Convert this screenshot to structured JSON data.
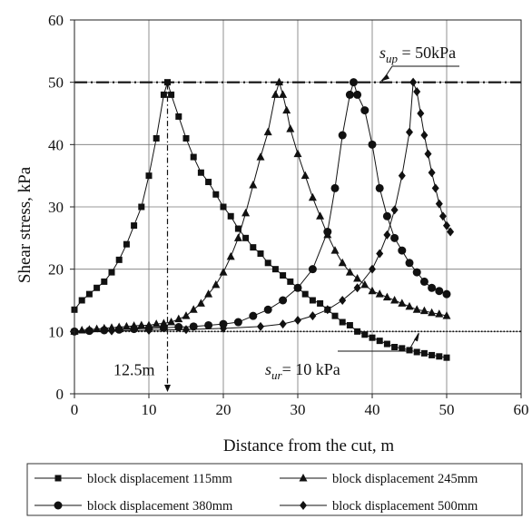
{
  "chart_data": {
    "type": "line",
    "xlabel": "Distance from the cut, m",
    "ylabel": "Shear stress, kPa",
    "xlim": [
      0,
      60
    ],
    "ylim": [
      0,
      60
    ],
    "xticks": [
      0,
      10,
      20,
      30,
      40,
      50,
      60
    ],
    "yticks": [
      0,
      10,
      20,
      30,
      40,
      50,
      60
    ],
    "grid": true,
    "legend_position": "bottom",
    "reference_lines": [
      {
        "y": 50,
        "style": "dash-dot",
        "label": {
          "main": "s",
          "sub": "up",
          "rest": " = 50kPa"
        }
      },
      {
        "y": 10,
        "style": "dotted",
        "label": {
          "main": "s",
          "sub": "ur",
          "rest": "= 10 kPa"
        }
      }
    ],
    "vertical_marker": {
      "x": 12.5,
      "label": "12.5m"
    },
    "series": [
      {
        "name": "block displacement 115mm",
        "marker": "square",
        "x": [
          0,
          1,
          2,
          3,
          4,
          5,
          6,
          7,
          8,
          9,
          10,
          11,
          12,
          12.5,
          13,
          14,
          15,
          16,
          17,
          18,
          19,
          20,
          21,
          22,
          23,
          24,
          25,
          26,
          27,
          28,
          29,
          30,
          31,
          32,
          33,
          34,
          35,
          36,
          37,
          38,
          39,
          40,
          41,
          42,
          43,
          44,
          45,
          46,
          47,
          48,
          49,
          50
        ],
        "y": [
          13.5,
          15,
          16,
          17,
          18,
          19.5,
          21.5,
          24,
          27,
          30,
          35,
          41,
          48,
          50,
          48,
          44.5,
          41,
          38,
          35.5,
          34,
          32,
          30,
          28.5,
          26.5,
          25,
          23.5,
          22.5,
          21,
          20,
          19,
          18,
          17,
          16,
          15,
          14.5,
          13.5,
          12.5,
          11.5,
          11,
          10,
          9.5,
          9,
          8.5,
          8,
          7.5,
          7.3,
          7,
          6.7,
          6.5,
          6.2,
          6,
          5.8
        ]
      },
      {
        "name": "block displacement 245mm",
        "marker": "triangle",
        "x": [
          0,
          1,
          2,
          3,
          4,
          5,
          6,
          7,
          8,
          9,
          10,
          11,
          12,
          13,
          14,
          15,
          16,
          17,
          18,
          19,
          20,
          21,
          22,
          23,
          24,
          25,
          26,
          27,
          27.5,
          28,
          28.5,
          29,
          30,
          31,
          32,
          33,
          34,
          35,
          36,
          37,
          38,
          39,
          40,
          41,
          42,
          43,
          44,
          45,
          46,
          47,
          48,
          49,
          50
        ],
        "y": [
          10,
          10.2,
          10.3,
          10.4,
          10.5,
          10.6,
          10.7,
          10.8,
          10.9,
          11,
          11,
          11.2,
          11.3,
          11.5,
          12,
          12.5,
          13.5,
          14.5,
          16,
          17.5,
          19.5,
          22,
          25,
          29,
          33.5,
          38,
          42,
          48,
          50,
          48,
          45.5,
          42.5,
          38.5,
          35,
          31.5,
          28.5,
          25.5,
          23,
          21,
          19.5,
          18.5,
          17.5,
          16.5,
          16,
          15.5,
          15,
          14.5,
          14,
          13.5,
          13.3,
          13,
          12.8,
          12.5
        ]
      },
      {
        "name": "block displacement 380mm",
        "marker": "circle",
        "x": [
          0,
          2,
          4,
          6,
          8,
          10,
          12,
          14,
          16,
          18,
          20,
          22,
          24,
          26,
          28,
          30,
          32,
          34,
          35,
          36,
          37,
          37.5,
          38,
          39,
          40,
          41,
          42,
          43,
          44,
          45,
          46,
          47,
          48,
          49,
          50
        ],
        "y": [
          10,
          10.1,
          10.2,
          10.3,
          10.4,
          10.5,
          10.6,
          10.7,
          10.8,
          11,
          11.2,
          11.5,
          12.5,
          13.5,
          15,
          17,
          20,
          26,
          33,
          41.5,
          48,
          50,
          48,
          45.5,
          40,
          33,
          28.5,
          25,
          23,
          21,
          19.5,
          18,
          17,
          16.5,
          16
        ]
      },
      {
        "name": "block displacement 500mm",
        "marker": "diamond",
        "x": [
          0,
          5,
          10,
          15,
          20,
          25,
          28,
          30,
          32,
          34,
          36,
          38,
          40,
          41,
          42,
          43,
          44,
          45,
          45.5,
          46,
          46.5,
          47,
          47.5,
          48,
          48.5,
          49,
          49.5,
          50,
          50.5
        ],
        "y": [
          10,
          10.1,
          10.2,
          10.3,
          10.5,
          10.8,
          11.2,
          11.8,
          12.5,
          13.5,
          15,
          17,
          20,
          22.5,
          25.5,
          29.5,
          35,
          42,
          50,
          48.5,
          45,
          41.5,
          38.5,
          35.5,
          33,
          30.5,
          28.5,
          27,
          26
        ]
      }
    ]
  }
}
